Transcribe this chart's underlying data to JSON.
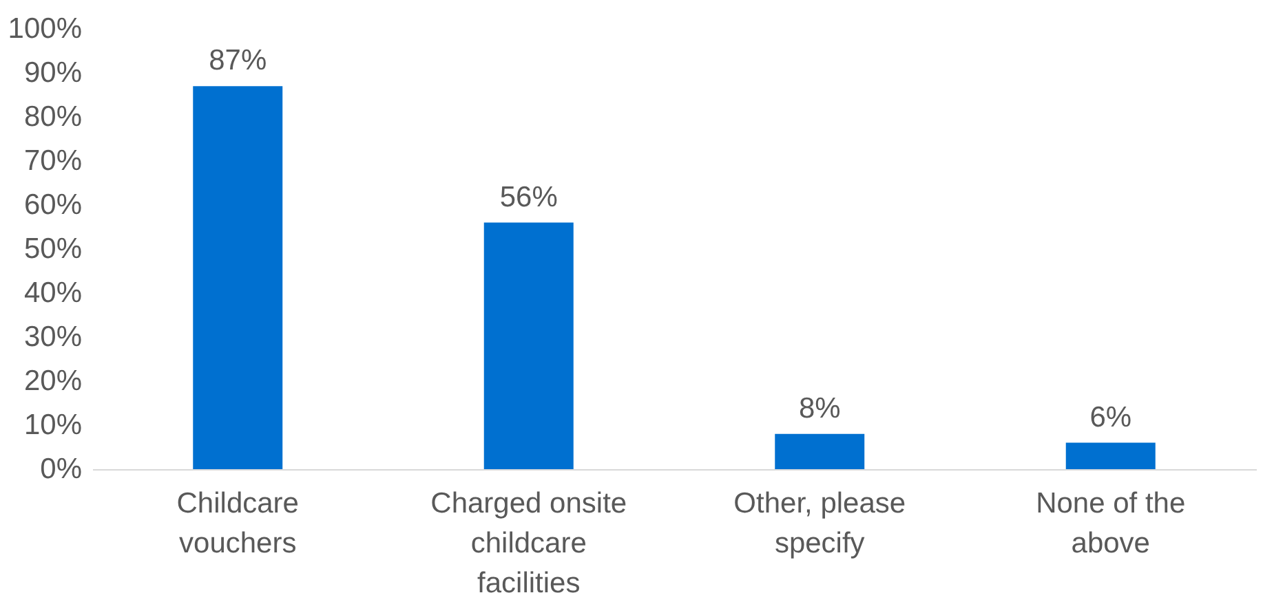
{
  "chart_data": {
    "type": "bar",
    "categories": [
      "Childcare vouchers",
      "Charged onsite childcare facilities",
      "Other, please specify",
      "None of the above"
    ],
    "values": [
      87,
      56,
      8,
      6
    ],
    "value_labels": [
      "87%",
      "56%",
      "8%",
      "6%"
    ],
    "color": "#0070d0",
    "ylim": [
      0,
      100
    ],
    "yticks": [
      {
        "value": 0,
        "label": "0%"
      },
      {
        "value": 10,
        "label": "10%"
      },
      {
        "value": 20,
        "label": "20%"
      },
      {
        "value": 30,
        "label": "30%"
      },
      {
        "value": 40,
        "label": "40%"
      },
      {
        "value": 50,
        "label": "50%"
      },
      {
        "value": 60,
        "label": "60%"
      },
      {
        "value": 70,
        "label": "70%"
      },
      {
        "value": 80,
        "label": "80%"
      },
      {
        "value": 90,
        "label": "90%"
      },
      {
        "value": 100,
        "label": "100%"
      }
    ],
    "grid": false,
    "legend": false
  }
}
